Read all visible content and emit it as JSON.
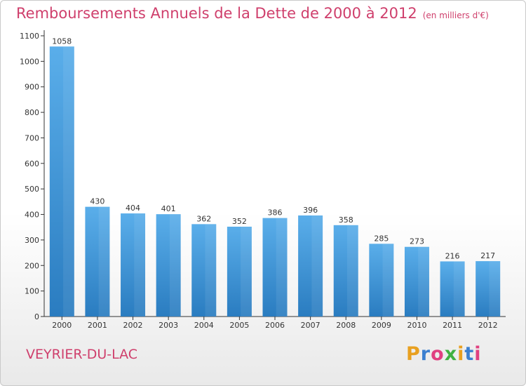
{
  "chart_data": {
    "type": "bar",
    "title": "Remboursements Annuels de la Dette de 2000 à 2012",
    "unit": "(en milliers d'€)",
    "categories": [
      "2000",
      "2001",
      "2002",
      "2003",
      "2004",
      "2005",
      "2006",
      "2007",
      "2008",
      "2009",
      "2010",
      "2011",
      "2012"
    ],
    "values": [
      1058,
      430,
      404,
      401,
      362,
      352,
      386,
      396,
      358,
      285,
      273,
      216,
      217
    ],
    "ylim": [
      0,
      1100
    ],
    "yticks": [
      0,
      100,
      200,
      300,
      400,
      500,
      600,
      700,
      800,
      900,
      1000,
      1100
    ],
    "grid": false,
    "bar_color": "#4a9fdc"
  },
  "commune": "VEYRIER-DU-LAC",
  "logo": {
    "letters": [
      "P",
      "r",
      "o",
      "x",
      "i",
      "t",
      "i"
    ],
    "colors": [
      "#e8a020",
      "#3b7fd0",
      "#e04080",
      "#40b040",
      "#e8a020",
      "#3b7fd0",
      "#e04080"
    ]
  }
}
